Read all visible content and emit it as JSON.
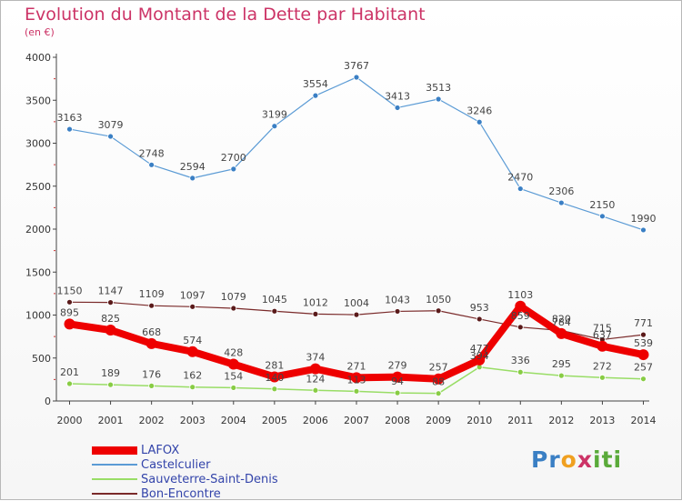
{
  "title": "Evolution du Montant de la Dette par Habitant",
  "subtitle": "(en €)",
  "logo": {
    "text": "Proxiti",
    "letters": [
      "P",
      "r",
      "o",
      "x",
      "i",
      "t",
      "i"
    ],
    "colors": [
      "#3a7fc4",
      "#3a7fc4",
      "#f0a020",
      "#cc3366",
      "#5aaa3a",
      "#5aaa3a",
      "#5aaa3a"
    ]
  },
  "chart_data": {
    "type": "line",
    "title": "Evolution du Montant de la Dette par Habitant",
    "subtitle": "(en €)",
    "xlabel": "",
    "ylabel": "",
    "ylim": [
      0,
      4000
    ],
    "yticks": [
      "0",
      "500",
      "1000",
      "1500",
      "2000",
      "2500",
      "3000",
      "3500",
      "4000"
    ],
    "grid": false,
    "legend_position": "bottom-left",
    "x": [
      "2000",
      "2001",
      "2002",
      "2003",
      "2004",
      "2005",
      "2006",
      "2007",
      "2008",
      "2009",
      "2010",
      "2011",
      "2012",
      "2013",
      "2014"
    ],
    "series": [
      {
        "name": "LAFOX",
        "color": "#ee0000",
        "values": [
          895,
          825,
          668,
          574,
          428,
          281,
          374,
          271,
          279,
          257,
          477,
          1103,
          784,
          637,
          539
        ]
      },
      {
        "name": "Castelculier",
        "color": "#5b9bd5",
        "values": [
          3163,
          3079,
          2748,
          2594,
          2700,
          3199,
          3554,
          3767,
          3413,
          3513,
          3246,
          2470,
          2306,
          2150,
          1990
        ]
      },
      {
        "name": "Sauveterre-Saint-Denis",
        "color": "#99dd66",
        "values": [
          201,
          189,
          176,
          162,
          154,
          140,
          124,
          113,
          94,
          88,
          394,
          336,
          295,
          272,
          257
        ]
      },
      {
        "name": "Bon-Encontre",
        "color": "#7a2a2a",
        "values": [
          1150,
          1147,
          1109,
          1097,
          1079,
          1045,
          1012,
          1004,
          1043,
          1050,
          953,
          859,
          820,
          715,
          771
        ]
      }
    ]
  }
}
